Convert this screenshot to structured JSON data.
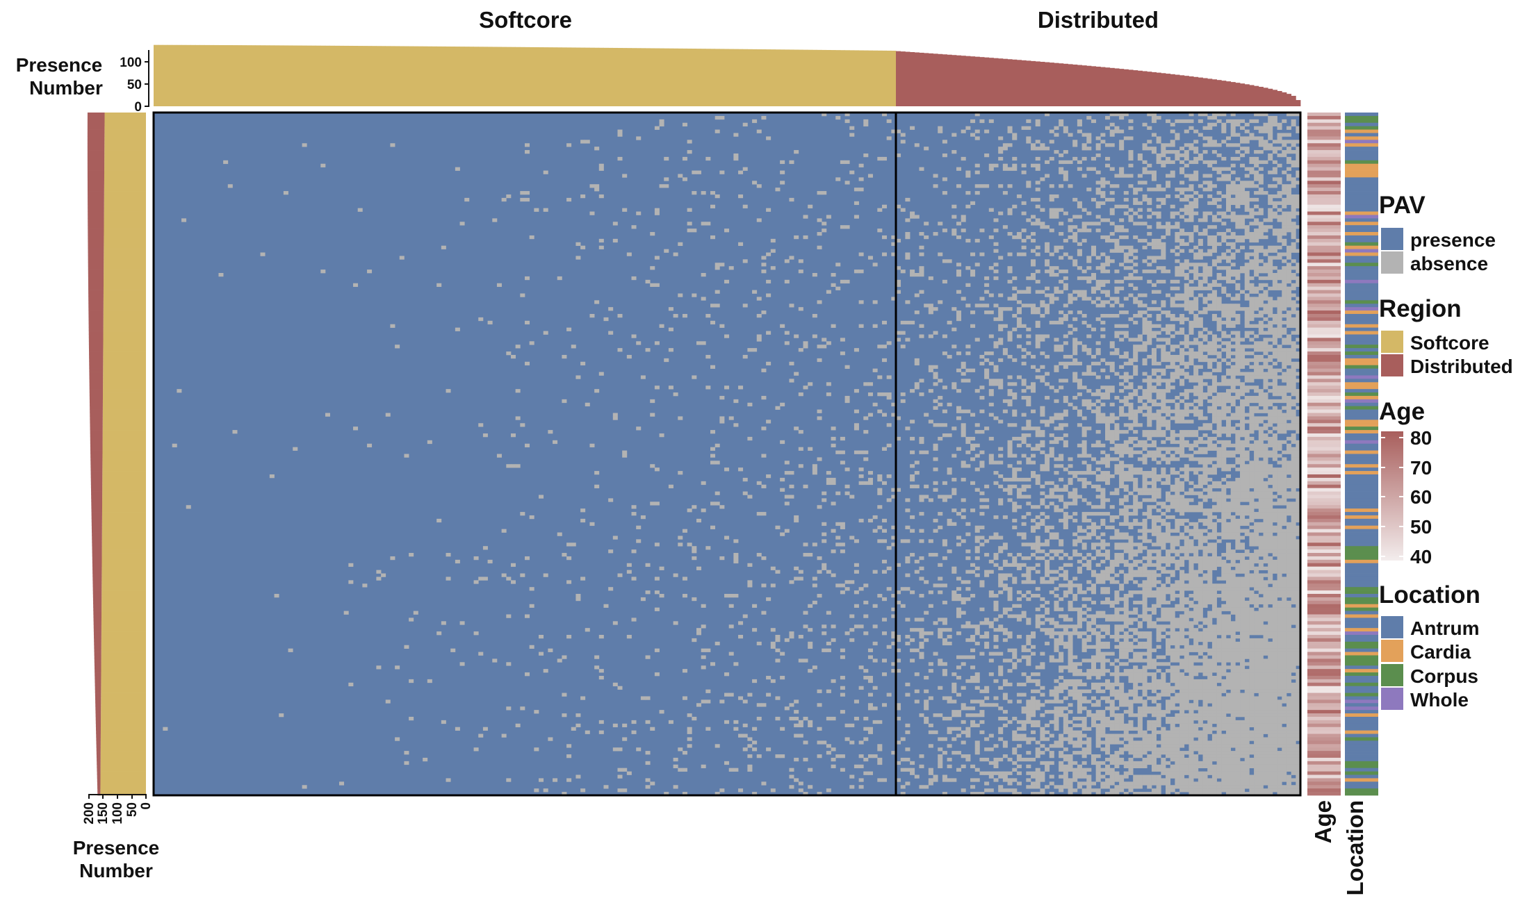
{
  "chart_data": {
    "type": "heatmap",
    "title": "",
    "column_groups": [
      "Softcore",
      "Distributed"
    ],
    "rows_estimated": 200,
    "columns_estimated": {
      "Softcore": 160,
      "Distributed": 87
    },
    "top_annotation": {
      "label": [
        "Presence",
        "Number"
      ],
      "ticks": [
        "0",
        "50",
        "100"
      ],
      "ylim": [
        0,
        140
      ],
      "series": [
        {
          "name": "Softcore",
          "color": "#D4B866",
          "start": 138,
          "end": 125
        },
        {
          "name": "Distributed",
          "color": "#A85E5C",
          "start": 124,
          "end": 14
        }
      ]
    },
    "left_annotation": {
      "label": [
        "Presence",
        "Number"
      ],
      "ticks": [
        "200",
        "150",
        "100",
        "50",
        "0"
      ],
      "xlim": [
        0,
        200
      ],
      "series": [
        {
          "name": "Softcore",
          "color": "#D4B866",
          "start": 145,
          "end": 160
        },
        {
          "name": "Distributed",
          "color": "#A85E5C",
          "start": 60,
          "end": 10
        }
      ]
    },
    "right_annotation_labels": [
      "Age",
      "Location"
    ],
    "legends": {
      "pav": {
        "title": "PAV",
        "items": [
          {
            "label": "presence",
            "color": "#5F7DAA"
          },
          {
            "label": "absence",
            "color": "#B3B3B3"
          }
        ]
      },
      "region": {
        "title": "Region",
        "items": [
          {
            "label": "Softcore",
            "color": "#D4B866"
          },
          {
            "label": "Distributed",
            "color": "#A85E5C"
          }
        ]
      },
      "age": {
        "title": "Age",
        "ticks": [
          "80",
          "70",
          "60",
          "50",
          "40"
        ],
        "range": [
          40,
          80
        ],
        "color_low": "#F3EDED",
        "color_high": "#A85E5C"
      },
      "location": {
        "title": "Location",
        "items": [
          {
            "label": "Antrum",
            "color": "#5F7DAA"
          },
          {
            "label": "Cardia",
            "color": "#E3A15A"
          },
          {
            "label": "Corpus",
            "color": "#5B8E4E"
          },
          {
            "label": "Whole",
            "color": "#8E79BE"
          }
        ]
      }
    },
    "absence_rate_trend": {
      "softcore_first_col": 0.002,
      "softcore_last_col": 0.1,
      "distributed_first_col": 0.1,
      "distributed_last_col": 0.85
    }
  }
}
